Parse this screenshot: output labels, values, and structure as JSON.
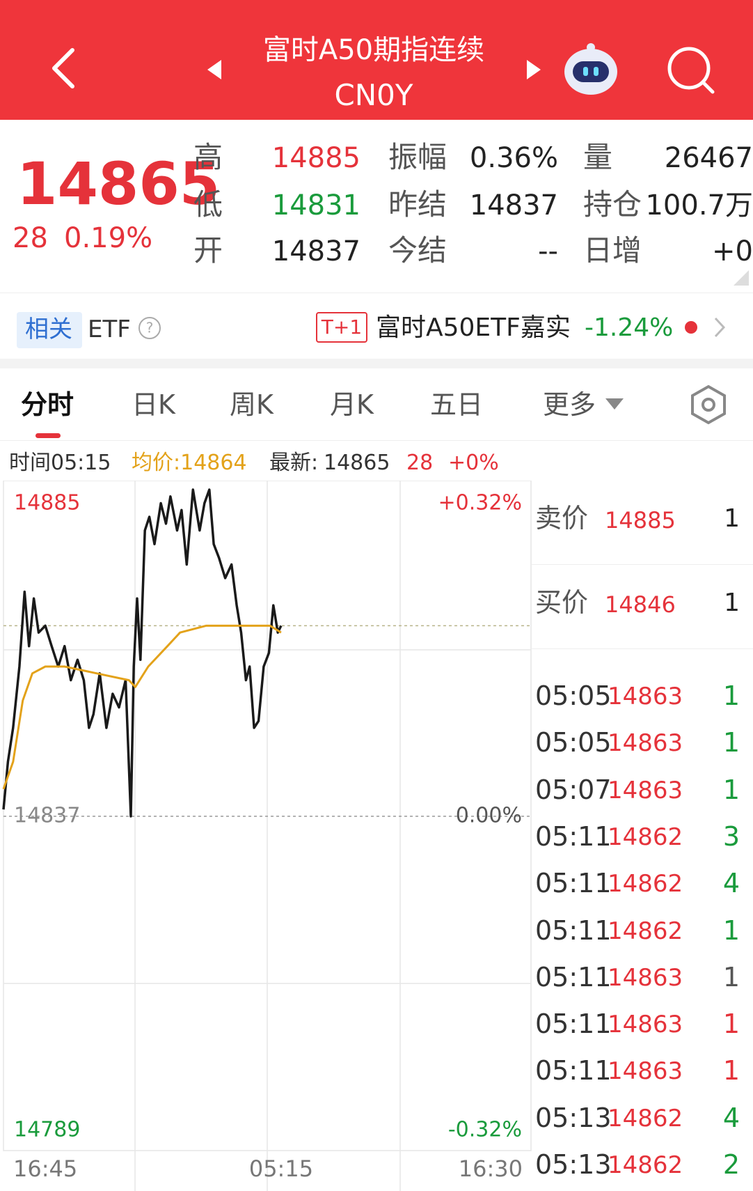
{
  "header": {
    "title": "富时A50期指连续",
    "code": "CN0Y"
  },
  "quote": {
    "price": "14865",
    "change": "28",
    "change_pct": "0.19%",
    "stats": [
      [
        {
          "label": "高",
          "value": "14885",
          "color": "#e5323a"
        },
        {
          "label": "振幅",
          "value": "0.36%",
          "color": "#222"
        },
        {
          "label": "量",
          "value": "26467",
          "color": "#222"
        }
      ],
      [
        {
          "label": "低",
          "value": "14831",
          "color": "#1a9b3c"
        },
        {
          "label": "昨结",
          "value": "14837",
          "color": "#222"
        },
        {
          "label": "持仓",
          "value": "100.7万",
          "color": "#222"
        }
      ],
      [
        {
          "label": "开",
          "value": "14837",
          "color": "#222"
        },
        {
          "label": "今结",
          "value": "--",
          "color": "#222"
        },
        {
          "label": "日增",
          "value": "+0",
          "color": "#222"
        }
      ]
    ]
  },
  "etf": {
    "tag": "相关",
    "label": "ETF",
    "badge": "T+1",
    "name": "富时A50ETF嘉实",
    "change": "-1.24%"
  },
  "tabs": [
    "分时",
    "日K",
    "周K",
    "月K",
    "五日",
    "更多"
  ],
  "info": {
    "time": "时间05:15",
    "avg": "均价:14864",
    "latest_label": "最新:",
    "change": "28",
    "change_pct": "+0%"
  },
  "chart_data": {
    "type": "line",
    "xlim": [
      0,
      1425
    ],
    "xticks": [
      {
        "value": 0,
        "label": "16:45"
      },
      {
        "value": 750,
        "label": "05:15"
      },
      {
        "value": 1425,
        "label": "16:30"
      }
    ],
    "ylim": [
      14789,
      14885
    ],
    "yticks": [
      14885,
      14837,
      14789
    ],
    "yticks_colors": [
      "#e5323a",
      "#888888",
      "#1a9b3c"
    ],
    "y2lim": [
      -0.32,
      0.32
    ],
    "y2ticks": [
      {
        "value": 0.32,
        "label": "+0.32%"
      },
      {
        "value": 0,
        "label": "0.00%"
      },
      {
        "value": -0.32,
        "label": "-0.32%"
      }
    ],
    "y2ticks_colors": [
      "#e5323a",
      "#555555",
      "#1a9b3c"
    ],
    "latest": 14865,
    "series": [
      {
        "name": "价格",
        "color": "#1a1a1a",
        "x": [
          0,
          12,
          26,
          43,
          57,
          69,
          82,
          95,
          113,
          130,
          148,
          165,
          182,
          200,
          217,
          231,
          243,
          260,
          278,
          295,
          312,
          330,
          344,
          352,
          361,
          370,
          382,
          394,
          408,
          425,
          439,
          451,
          469,
          481,
          495,
          512,
          530,
          543,
          556,
          568,
          582,
          599,
          616,
          630,
          642,
          655,
          665,
          677,
          689,
          703,
          717,
          729,
          741,
          750
        ],
        "values": [
          14838,
          14845,
          14850,
          14859,
          14870,
          14862,
          14869,
          14864,
          14865,
          14862,
          14859,
          14862,
          14857,
          14860,
          14857,
          14850,
          14852,
          14858,
          14850,
          14855,
          14853,
          14857,
          14837,
          14859,
          14869,
          14860,
          14879,
          14881,
          14877,
          14883,
          14880,
          14884,
          14879,
          14882,
          14874,
          14885,
          14879,
          14883,
          14885,
          14877,
          14875,
          14872,
          14874,
          14868,
          14864,
          14857,
          14859,
          14850,
          14851,
          14859,
          14861,
          14868,
          14864,
          14865
        ]
      },
      {
        "name": "均价",
        "color": "#e3a21a",
        "x": [
          0,
          26,
          52,
          78,
          113,
          165,
          252,
          339,
          356,
          391,
          443,
          477,
          547,
          616,
          651,
          720,
          750
        ],
        "values": [
          14841,
          14845,
          14854,
          14858,
          14859,
          14859,
          14858,
          14857,
          14856,
          14859,
          14862,
          14864,
          14865,
          14865,
          14865,
          14865,
          14864
        ]
      }
    ]
  },
  "order_book": {
    "ask": {
      "label": "卖价",
      "price": "14885",
      "vol": "1"
    },
    "bid": {
      "label": "买价",
      "price": "14846",
      "vol": "1"
    }
  },
  "trades": [
    {
      "time": "05:05",
      "price": "14863",
      "vol": "1",
      "color": "#1a9b3c"
    },
    {
      "time": "05:05",
      "price": "14863",
      "vol": "1",
      "color": "#1a9b3c"
    },
    {
      "time": "05:07",
      "price": "14863",
      "vol": "1",
      "color": "#1a9b3c"
    },
    {
      "time": "05:11",
      "price": "14862",
      "vol": "3",
      "color": "#1a9b3c"
    },
    {
      "time": "05:11",
      "price": "14862",
      "vol": "4",
      "color": "#1a9b3c"
    },
    {
      "time": "05:11",
      "price": "14862",
      "vol": "1",
      "color": "#1a9b3c"
    },
    {
      "time": "05:11",
      "price": "14863",
      "vol": "1",
      "color": "#555555"
    },
    {
      "time": "05:11",
      "price": "14863",
      "vol": "1",
      "color": "#e5323a"
    },
    {
      "time": "05:11",
      "price": "14863",
      "vol": "1",
      "color": "#e5323a"
    },
    {
      "time": "05:13",
      "price": "14862",
      "vol": "4",
      "color": "#1a9b3c"
    },
    {
      "time": "05:13",
      "price": "14862",
      "vol": "2",
      "color": "#1a9b3c"
    }
  ]
}
